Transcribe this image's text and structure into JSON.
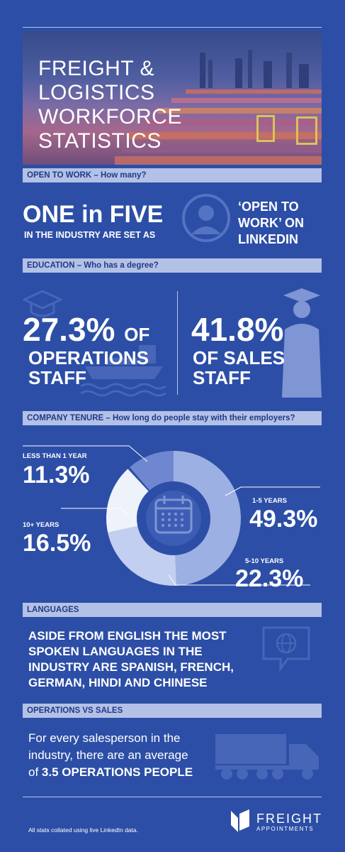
{
  "hero": {
    "title_lines": [
      "FREIGHT &",
      "LOGISTICS",
      "WORKFORCE",
      "STATISTICS"
    ]
  },
  "sections": {
    "open_to_work": "OPEN TO WORK – How many?",
    "education": "EDUCATION – Who has a degree?",
    "tenure": "COMPANY TENURE – How long do people stay with their employers?",
    "languages": "LANGUAGES",
    "ops_vs_sales": "OPERATIONS VS SALES"
  },
  "open_to_work": {
    "headline": "ONE in FIVE",
    "subline": "IN THE INDUSTRY ARE SET AS",
    "right_lines": [
      "‘OPEN TO",
      "WORK’ ON",
      "LINKEDIN"
    ]
  },
  "education": {
    "ops_pct": "27.3%",
    "ops_of": "OF",
    "ops_label_lines": [
      "OPERATIONS",
      "STAFF"
    ],
    "sales_pct": "41.8%",
    "sales_label_lines": [
      "OF SALES",
      "STAFF"
    ]
  },
  "tenure": {
    "segments": [
      {
        "label": "LESS THAN 1 YEAR",
        "value": "11.3%",
        "pct": 11.3,
        "color": "#6e87d0"
      },
      {
        "label": "1-5 YEARS",
        "value": "49.3%",
        "pct": 49.3,
        "color": "#9db0e3"
      },
      {
        "label": "5-10 YEARS",
        "value": "22.3%",
        "pct": 22.3,
        "color": "#c3cff0"
      },
      {
        "label": "10+ YEARS",
        "value": "16.5%",
        "pct": 16.5,
        "color": "#eef2fb"
      }
    ]
  },
  "languages": {
    "text_lines": [
      "ASIDE FROM ENGLISH THE MOST",
      "SPOKEN LANGUAGES IN THE",
      "INDUSTRY ARE SPANISH, FRENCH,",
      "GERMAN, HINDI AND CHINESE"
    ]
  },
  "ops_vs_sales": {
    "line1": "For every salesperson in the",
    "line2": "industry, there are an average",
    "line3_prefix": "of ",
    "line3_bold": "3.5 OPERATIONS PEOPLE"
  },
  "footer": {
    "note": "All stats collated using live LinkedIn data.",
    "logo_main": "FREIGHT",
    "logo_sub": "APPOINTMENTS"
  },
  "colors": {
    "background": "#2c4ea6",
    "section_bar": "#b4c1e6",
    "section_text": "#1f3a86",
    "icon_muted": "#4766b8"
  }
}
